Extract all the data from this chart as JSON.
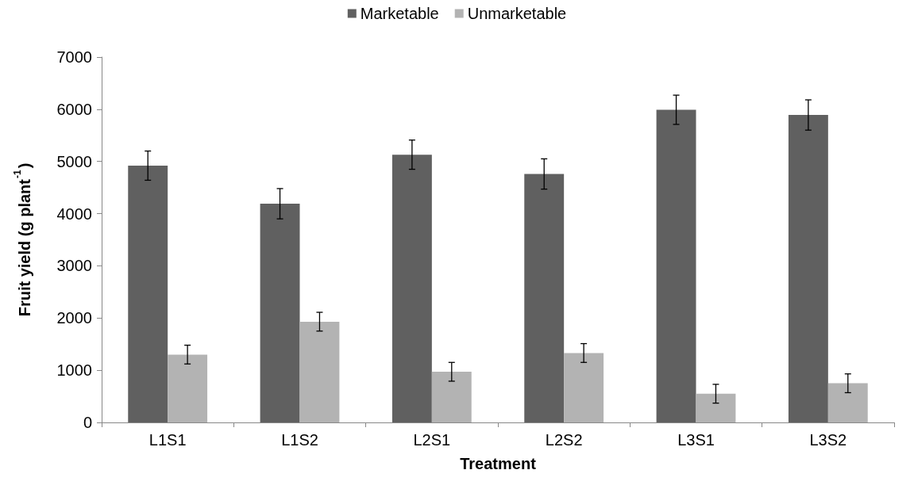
{
  "chart_data": {
    "type": "bar",
    "xlabel": "Treatment",
    "ylabel": "Fruit yield (g plant$^{-1}$)",
    "categories": [
      "L1S1",
      "L1S2",
      "L2S1",
      "L2S2",
      "L3S1",
      "L3S2"
    ],
    "series": [
      {
        "name": "Marketable",
        "color": "#606060",
        "values": [
          4920,
          4190,
          5130,
          4760,
          5990,
          5890
        ],
        "errors": [
          280,
          290,
          280,
          290,
          280,
          290
        ]
      },
      {
        "name": "Unmarketable",
        "color": "#b3b3b3",
        "values": [
          1300,
          1930,
          970,
          1330,
          550,
          750
        ],
        "errors": [
          180,
          180,
          180,
          180,
          180,
          180
        ]
      }
    ],
    "ylim": [
      0,
      7000
    ],
    "yticks": [
      0,
      1000,
      2000,
      3000,
      4000,
      5000,
      6000,
      7000
    ],
    "grid": false,
    "legend": "top"
  }
}
